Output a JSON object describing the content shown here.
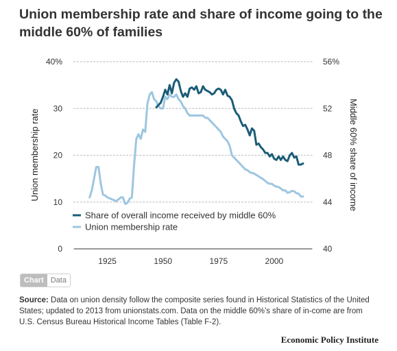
{
  "title": "Union membership rate and share of income going to the middle 60% of families",
  "toggle": {
    "chart_label": "Chart",
    "data_label": "Data"
  },
  "source": {
    "label": "Source:",
    "text": "Data on union density follow the composite series found in Historical Statistics of the United States; updated to 2013 from unionstats.com. Data on the middle 60%'s share of in-come are from U.S. Census Bureau Historical Income Tables (Table F-2)."
  },
  "credit": "Economic Policy Institute",
  "colors": {
    "income_line": "#1a5c78",
    "union_line": "#9dc6e0",
    "grid": "#cccccc"
  },
  "chart_data": {
    "type": "line",
    "xlabel": "",
    "ylabel": "Union membership rate",
    "y2label": "Middle 60% share of income",
    "xlim": [
      1910,
      2017
    ],
    "xticks": [
      1925,
      1950,
      1975,
      2000
    ],
    "ylim": [
      0,
      40
    ],
    "yticks": [
      0,
      10,
      20,
      30,
      40
    ],
    "ytick_labels": [
      "0",
      "10",
      "20",
      "30",
      "40%"
    ],
    "y2lim": [
      40,
      56
    ],
    "y2ticks": [
      40,
      44,
      48,
      52,
      56
    ],
    "y2tick_labels": [
      "40",
      "44",
      "48",
      "52",
      "56%"
    ],
    "grid": true,
    "legend_position": "inside-lower",
    "series": [
      {
        "name": "Share of overall income received by middle 60%",
        "axis": "right",
        "color": "#1a5c78",
        "points": [
          [
            1947,
            52.1
          ],
          [
            1948,
            52.3
          ],
          [
            1949,
            52.5
          ],
          [
            1950,
            53.0
          ],
          [
            1951,
            53.6
          ],
          [
            1952,
            53.2
          ],
          [
            1953,
            54.0
          ],
          [
            1954,
            53.3
          ],
          [
            1955,
            54.2
          ],
          [
            1956,
            54.5
          ],
          [
            1957,
            54.3
          ],
          [
            1958,
            53.5
          ],
          [
            1959,
            53.0
          ],
          [
            1960,
            53.3
          ],
          [
            1961,
            53.0
          ],
          [
            1962,
            53.7
          ],
          [
            1963,
            53.8
          ],
          [
            1964,
            53.6
          ],
          [
            1965,
            53.9
          ],
          [
            1966,
            53.3
          ],
          [
            1967,
            53.4
          ],
          [
            1968,
            53.9
          ],
          [
            1969,
            53.6
          ],
          [
            1970,
            53.5
          ],
          [
            1971,
            53.4
          ],
          [
            1972,
            53.2
          ],
          [
            1973,
            53.3
          ],
          [
            1974,
            53.6
          ],
          [
            1975,
            53.7
          ],
          [
            1976,
            53.6
          ],
          [
            1977,
            53.2
          ],
          [
            1978,
            53.6
          ],
          [
            1979,
            53.1
          ],
          [
            1980,
            53.0
          ],
          [
            1981,
            52.7
          ],
          [
            1982,
            52.0
          ],
          [
            1983,
            51.6
          ],
          [
            1984,
            51.4
          ],
          [
            1985,
            50.9
          ],
          [
            1986,
            50.5
          ],
          [
            1987,
            50.6
          ],
          [
            1988,
            50.2
          ],
          [
            1989,
            49.7
          ],
          [
            1990,
            50.3
          ],
          [
            1991,
            50.1
          ],
          [
            1992,
            48.9
          ],
          [
            1993,
            49.0
          ],
          [
            1994,
            48.7
          ],
          [
            1995,
            48.5
          ],
          [
            1996,
            48.2
          ],
          [
            1997,
            48.2
          ],
          [
            1998,
            47.9
          ],
          [
            1999,
            48.1
          ],
          [
            2000,
            47.7
          ],
          [
            2001,
            47.6
          ],
          [
            2002,
            47.9
          ],
          [
            2003,
            47.6
          ],
          [
            2004,
            47.9
          ],
          [
            2005,
            47.6
          ],
          [
            2006,
            47.5
          ],
          [
            2007,
            48.0
          ],
          [
            2008,
            48.2
          ],
          [
            2009,
            47.8
          ],
          [
            2010,
            47.9
          ],
          [
            2011,
            47.2
          ],
          [
            2012,
            47.2
          ],
          [
            2013,
            47.3
          ]
        ]
      },
      {
        "name": "Union membership rate",
        "axis": "left",
        "color": "#9dc6e0",
        "points": [
          [
            1917,
            11.0
          ],
          [
            1918,
            12.5
          ],
          [
            1919,
            15.0
          ],
          [
            1920,
            17.5
          ],
          [
            1921,
            17.5
          ],
          [
            1922,
            14.0
          ],
          [
            1923,
            11.6
          ],
          [
            1924,
            11.4
          ],
          [
            1925,
            11.0
          ],
          [
            1926,
            10.8
          ],
          [
            1927,
            10.6
          ],
          [
            1928,
            10.4
          ],
          [
            1929,
            10.2
          ],
          [
            1930,
            10.6
          ],
          [
            1931,
            11.0
          ],
          [
            1932,
            11.0
          ],
          [
            1933,
            9.6
          ],
          [
            1934,
            9.8
          ],
          [
            1935,
            10.7
          ],
          [
            1936,
            11.0
          ],
          [
            1937,
            18.0
          ],
          [
            1938,
            23.5
          ],
          [
            1939,
            24.5
          ],
          [
            1940,
            23.5
          ],
          [
            1941,
            25.5
          ],
          [
            1942,
            25.0
          ],
          [
            1943,
            31.0
          ],
          [
            1944,
            33.0
          ],
          [
            1945,
            33.5
          ],
          [
            1946,
            32.0
          ],
          [
            1947,
            31.5
          ],
          [
            1948,
            30.5
          ],
          [
            1949,
            30.0
          ],
          [
            1950,
            30.0
          ],
          [
            1951,
            32.5
          ],
          [
            1952,
            32.0
          ],
          [
            1953,
            33.0
          ],
          [
            1954,
            32.5
          ],
          [
            1955,
            32.5
          ],
          [
            1956,
            33.0
          ],
          [
            1957,
            32.0
          ],
          [
            1958,
            31.5
          ],
          [
            1959,
            30.5
          ],
          [
            1960,
            30.0
          ],
          [
            1961,
            29.0
          ],
          [
            1962,
            28.5
          ],
          [
            1963,
            28.5
          ],
          [
            1964,
            28.5
          ],
          [
            1965,
            28.5
          ],
          [
            1966,
            28.5
          ],
          [
            1967,
            28.5
          ],
          [
            1968,
            28.5
          ],
          [
            1969,
            28.0
          ],
          [
            1970,
            28.0
          ],
          [
            1971,
            27.5
          ],
          [
            1972,
            27.0
          ],
          [
            1973,
            26.5
          ],
          [
            1974,
            26.0
          ],
          [
            1975,
            25.5
          ],
          [
            1976,
            25.0
          ],
          [
            1977,
            24.0
          ],
          [
            1978,
            23.5
          ],
          [
            1979,
            23.0
          ],
          [
            1980,
            22.0
          ],
          [
            1981,
            20.0
          ],
          [
            1982,
            19.5
          ],
          [
            1983,
            19.0
          ],
          [
            1984,
            18.5
          ],
          [
            1985,
            18.0
          ],
          [
            1986,
            17.5
          ],
          [
            1987,
            17.0
          ],
          [
            1988,
            16.8
          ],
          [
            1989,
            16.4
          ],
          [
            1990,
            16.2
          ],
          [
            1991,
            16.1
          ],
          [
            1992,
            15.8
          ],
          [
            1993,
            15.5
          ],
          [
            1994,
            15.2
          ],
          [
            1995,
            14.9
          ],
          [
            1996,
            14.5
          ],
          [
            1997,
            14.1
          ],
          [
            1998,
            13.9
          ],
          [
            1999,
            13.9
          ],
          [
            2000,
            13.5
          ],
          [
            2001,
            13.3
          ],
          [
            2002,
            13.2
          ],
          [
            2003,
            12.9
          ],
          [
            2004,
            12.5
          ],
          [
            2005,
            12.5
          ],
          [
            2006,
            12.0
          ],
          [
            2007,
            12.1
          ],
          [
            2008,
            12.4
          ],
          [
            2009,
            12.3
          ],
          [
            2010,
            11.9
          ],
          [
            2011,
            11.8
          ],
          [
            2012,
            11.2
          ],
          [
            2013,
            11.2
          ]
        ]
      }
    ]
  }
}
